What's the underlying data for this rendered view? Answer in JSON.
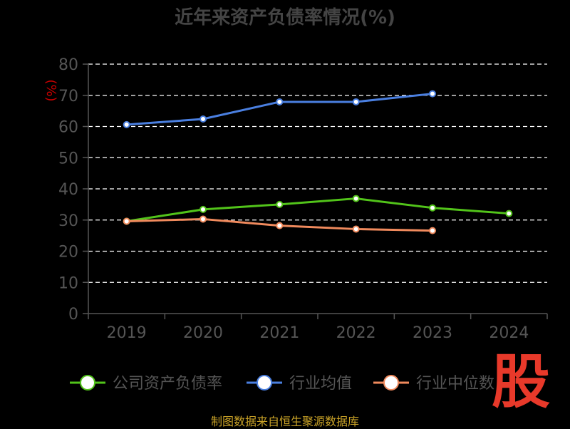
{
  "chart_data": {
    "type": "line",
    "title": "近年来资产负债率情况(%)",
    "ylabel": "(%)",
    "categories": [
      "2019",
      "2020",
      "2021",
      "2022",
      "2023",
      "2024"
    ],
    "ylim": [
      0,
      80
    ],
    "yticks": [
      "0",
      "10",
      "20",
      "30",
      "40",
      "50",
      "60",
      "70",
      "80"
    ],
    "grid": true,
    "legend_position": "bottom",
    "series": [
      {
        "name": "公司资产负债率",
        "color": "#52c41a",
        "values": [
          29.6,
          33.4,
          35.0,
          36.9,
          33.9,
          32.1
        ]
      },
      {
        "name": "行业均值",
        "color": "#4a7fe0",
        "values": [
          60.6,
          62.4,
          67.9,
          67.9,
          70.5,
          null
        ]
      },
      {
        "name": "行业中位数",
        "color": "#f08a5d",
        "values": [
          29.6,
          30.3,
          28.2,
          27.1,
          26.6,
          null
        ]
      }
    ]
  },
  "source_note": "制图数据来自恒生聚源数据库",
  "watermark": "股"
}
